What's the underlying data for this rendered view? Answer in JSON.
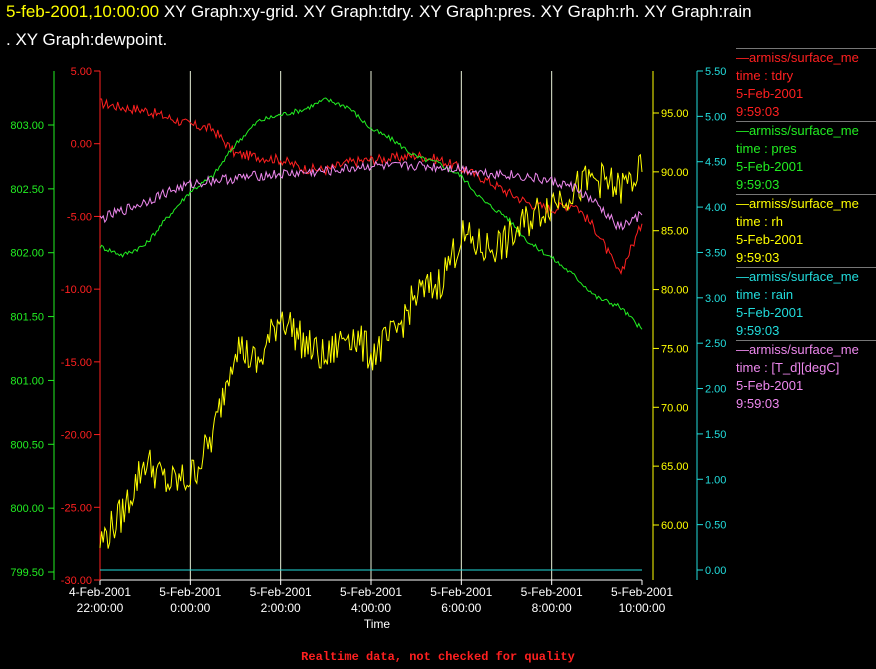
{
  "title": {
    "date": "5-feb-2001,10:00:00",
    "line1_rest": "  XY Graph:xy-grid.  XY Graph:tdry.  XY Graph:pres.  XY Graph:rh.  XY Graph:rain",
    "line2": ".  XY Graph:dewpoint."
  },
  "colors": {
    "tdry": "#ff2020",
    "pres": "#22ee22",
    "rh": "#ffff00",
    "rain": "#22dddd",
    "dewpoint": "#ee88ee",
    "grid": "#e8f0d8",
    "axis_text": "#ffffff"
  },
  "legend": [
    {
      "name": "tdry-series",
      "color": "#ff2020",
      "lines": [
        "—armiss/surface_me",
        "time : tdry",
        "5-Feb-2001",
        "9:59:03"
      ]
    },
    {
      "name": "pres-series",
      "color": "#22ee22",
      "lines": [
        "—armiss/surface_me",
        "time : pres",
        "5-Feb-2001",
        "9:59:03"
      ]
    },
    {
      "name": "rh-series",
      "color": "#ffff00",
      "lines": [
        "—armiss/surface_me",
        "time : rh",
        "5-Feb-2001",
        "9:59:03"
      ]
    },
    {
      "name": "rain-series",
      "color": "#22dddd",
      "lines": [
        "—armiss/surface_me",
        "time : rain",
        "5-Feb-2001",
        "9:59:03"
      ]
    },
    {
      "name": "dewpoint-series",
      "color": "#ee88ee",
      "lines": [
        "—armiss/surface_me",
        "time : [T_d][degC]",
        "5-Feb-2001",
        "9:59:03"
      ]
    }
  ],
  "footer": "Realtime data, not checked for quality",
  "chart_data": {
    "type": "line",
    "xlabel": "Time",
    "x_tick_labels": [
      [
        "4-Feb-2001",
        "22:00:00"
      ],
      [
        "5-Feb-2001",
        "0:00:00"
      ],
      [
        "5-Feb-2001",
        "2:00:00"
      ],
      [
        "5-Feb-2001",
        "4:00:00"
      ],
      [
        "5-Feb-2001",
        "6:00:00"
      ],
      [
        "5-Feb-2001",
        "8:00:00"
      ],
      [
        "5-Feb-2001",
        "10:00:00"
      ]
    ],
    "xlim_hours_from_4feb_2200": [
      0,
      12
    ],
    "grid": "vertical",
    "axes": {
      "tdry": {
        "ylim": [
          -30,
          5
        ],
        "ticks": [
          "5.00",
          "0.00",
          "-5.00",
          "-10.00",
          "-15.00",
          "-20.00",
          "-25.00",
          "-30.00"
        ]
      },
      "pres": {
        "ylim": [
          799.5,
          803.25
        ],
        "ticks": [
          "803.00",
          "802.50",
          "802.00",
          "801.50",
          "801.00",
          "800.50",
          "800.00",
          "799.50"
        ]
      },
      "rh": {
        "ylim": [
          55.5,
          98.5
        ],
        "ticks": [
          "95.00",
          "90.00",
          "85.00",
          "80.00",
          "75.00",
          "70.00",
          "65.00",
          "60.00"
        ]
      },
      "rain": {
        "ylim": [
          0,
          5.5
        ],
        "ticks": [
          "5.50",
          "5.00",
          "4.50",
          "4.00",
          "3.50",
          "3.00",
          "2.50",
          "2.00",
          "1.50",
          "1.00",
          "0.50",
          "0.00"
        ]
      }
    },
    "series": [
      {
        "name": "time : tdry",
        "axis": "tdry",
        "x": [
          0,
          0.5,
          1,
          1.5,
          2,
          2.5,
          3,
          3.5,
          4,
          4.5,
          5,
          5.5,
          6,
          6.5,
          7,
          7.5,
          8,
          8.5,
          9,
          9.5,
          10,
          10.5,
          11,
          11.5,
          12
        ],
        "y": [
          2.8,
          2.5,
          2.3,
          1.8,
          1.3,
          1.0,
          -0.7,
          -0.9,
          -1.1,
          -1.7,
          -1.8,
          -1.3,
          -1.1,
          -1.0,
          -0.8,
          -1.1,
          -1.7,
          -2.4,
          -3.3,
          -4.1,
          -4.5,
          -4.1,
          -6.0,
          -9.0,
          -5.5
        ]
      },
      {
        "name": "time : pres",
        "axis": "pres",
        "x": [
          0,
          0.5,
          1,
          1.5,
          2,
          2.5,
          3,
          3.5,
          4,
          4.5,
          5,
          5.5,
          6,
          6.5,
          7,
          7.5,
          8,
          8.5,
          9,
          9.5,
          10,
          10.5,
          11,
          11.5,
          12
        ],
        "y": [
          802.05,
          801.98,
          802.06,
          802.28,
          802.48,
          802.6,
          802.85,
          803.03,
          803.08,
          803.12,
          803.2,
          803.14,
          802.97,
          802.88,
          802.75,
          802.7,
          802.6,
          802.4,
          802.28,
          802.08,
          801.96,
          801.82,
          801.65,
          801.58,
          801.4
        ]
      },
      {
        "name": "time : rh",
        "axis": "rh",
        "x": [
          0,
          0.5,
          1,
          1.5,
          2,
          2.5,
          3,
          3.5,
          4,
          4.5,
          5,
          5.5,
          6,
          6.5,
          7,
          7.5,
          8,
          8.5,
          9,
          9.5,
          10,
          10.5,
          11,
          11.5,
          12
        ],
        "y": [
          58.5,
          61.0,
          65.5,
          63.5,
          64.0,
          67.5,
          75.5,
          73.5,
          78.0,
          75.5,
          74.0,
          76.5,
          74.5,
          76.0,
          79.5,
          80.5,
          84.5,
          83.5,
          84.0,
          86.0,
          87.5,
          88.5,
          89.5,
          88.5,
          90.0
        ]
      },
      {
        "name": "time : rain",
        "axis": "rain",
        "x": [
          0,
          12
        ],
        "y": [
          0.0,
          0.0
        ]
      },
      {
        "name": "time : [T_d][degC]",
        "axis": "tdry",
        "x": [
          0,
          0.5,
          1,
          1.5,
          2,
          2.5,
          3,
          3.5,
          4,
          4.5,
          5,
          5.5,
          6,
          6.5,
          7,
          7.5,
          8,
          8.5,
          9,
          9.5,
          10,
          10.5,
          11,
          11.5,
          12
        ],
        "y": [
          -5.2,
          -4.6,
          -4.0,
          -3.3,
          -2.8,
          -2.5,
          -2.4,
          -2.2,
          -2.1,
          -2.0,
          -1.9,
          -1.7,
          -1.5,
          -1.6,
          -1.5,
          -1.6,
          -1.7,
          -2.0,
          -2.1,
          -2.3,
          -2.6,
          -3.0,
          -4.2,
          -5.8,
          -4.9
        ]
      }
    ]
  }
}
